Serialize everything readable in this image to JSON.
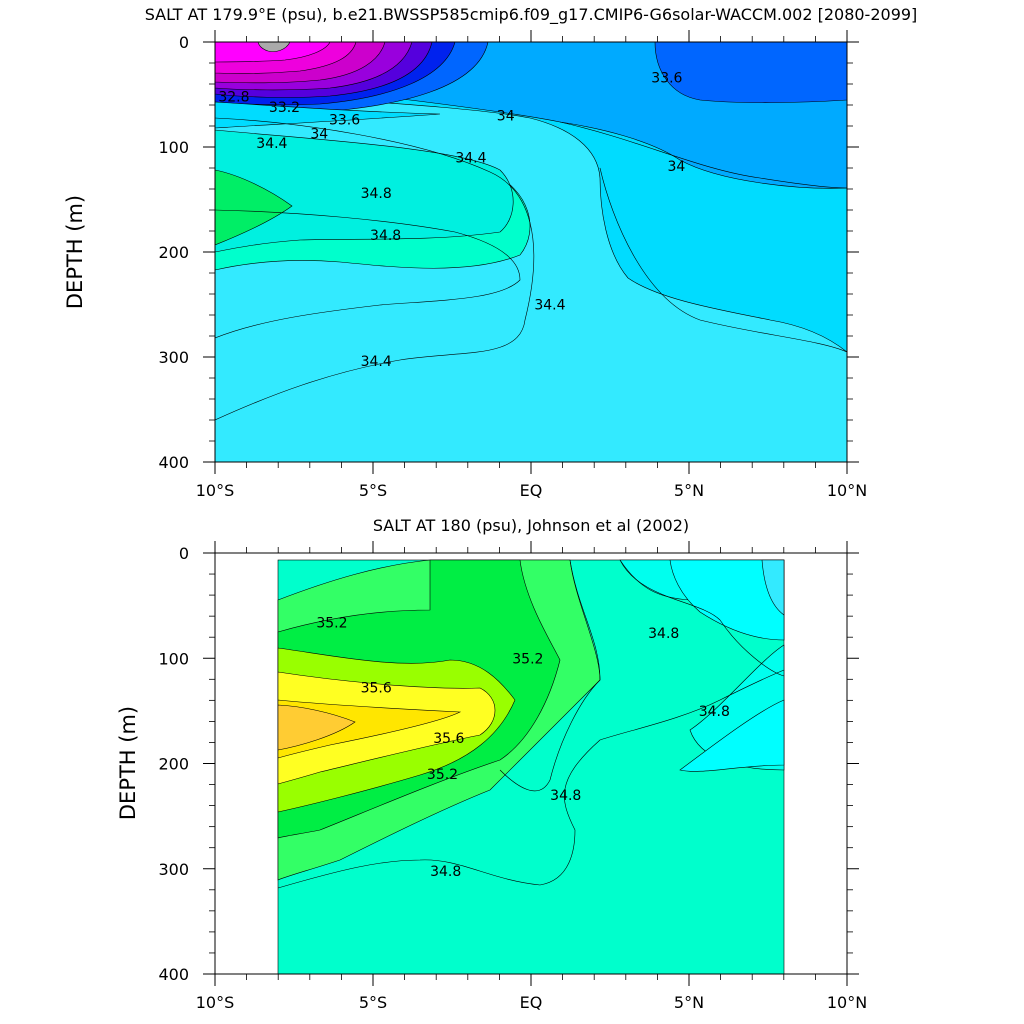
{
  "chart_data": [
    {
      "type": "contour",
      "title": "SALT AT 179.9°E (psu), b.e21.BWSSP585cmip6.f09_g17.CMIP6-G6solar-WACCM.002 [2080-2099]",
      "xlabel": "",
      "ylabel": "DEPTH (m)",
      "xlim": [
        -10,
        10
      ],
      "ylim": [
        400,
        0
      ],
      "xticks": [
        {
          "value": -10,
          "label": "10°S"
        },
        {
          "value": -5,
          "label": "5°S"
        },
        {
          "value": 0,
          "label": "EQ"
        },
        {
          "value": 5,
          "label": "5°N"
        },
        {
          "value": 10,
          "label": "10°N"
        }
      ],
      "yticks": [
        0,
        100,
        200,
        300,
        400
      ],
      "contour_labels": [
        {
          "text": "32.8",
          "x": -9.4,
          "depth": 52
        },
        {
          "text": "33.2",
          "x": -7.8,
          "depth": 62
        },
        {
          "text": "33.6",
          "x": -5.9,
          "depth": 74
        },
        {
          "text": "34",
          "x": -6.7,
          "depth": 87
        },
        {
          "text": "34.4",
          "x": -8.2,
          "depth": 96
        },
        {
          "text": "34",
          "x": -0.8,
          "depth": 70
        },
        {
          "text": "34.4",
          "x": -1.9,
          "depth": 110
        },
        {
          "text": "33.6",
          "x": 4.3,
          "depth": 34
        },
        {
          "text": "34",
          "x": 4.6,
          "depth": 118
        },
        {
          "text": "34.8",
          "x": -4.9,
          "depth": 144
        },
        {
          "text": "34.8",
          "x": -4.6,
          "depth": 184
        },
        {
          "text": "34.4",
          "x": 0.6,
          "depth": 250
        },
        {
          "text": "34.4",
          "x": -4.9,
          "depth": 304
        }
      ]
    },
    {
      "type": "contour",
      "title": "SALT AT 180 (psu), Johnson et al (2002)",
      "xlabel": "",
      "ylabel": "DEPTH (m)",
      "xlim": [
        -10,
        10
      ],
      "ylim": [
        400,
        0
      ],
      "xticks": [
        {
          "value": -10,
          "label": "10°S"
        },
        {
          "value": -5,
          "label": "5°S"
        },
        {
          "value": 0,
          "label": "EQ"
        },
        {
          "value": 5,
          "label": "5°N"
        },
        {
          "value": 10,
          "label": "10°N"
        }
      ],
      "yticks": [
        0,
        100,
        200,
        300,
        400
      ],
      "contour_labels": [
        {
          "text": "35.2",
          "x": -6.3,
          "depth": 66
        },
        {
          "text": "34.8",
          "x": 4.2,
          "depth": 76
        },
        {
          "text": "35.2",
          "x": -0.1,
          "depth": 100
        },
        {
          "text": "35.6",
          "x": -4.9,
          "depth": 128
        },
        {
          "text": "34.8",
          "x": 5.8,
          "depth": 150
        },
        {
          "text": "35.6",
          "x": -2.6,
          "depth": 176
        },
        {
          "text": "35.2",
          "x": -2.8,
          "depth": 210
        },
        {
          "text": "34.8",
          "x": 1.1,
          "depth": 230
        },
        {
          "text": "34.8",
          "x": -2.7,
          "depth": 302
        }
      ]
    }
  ]
}
